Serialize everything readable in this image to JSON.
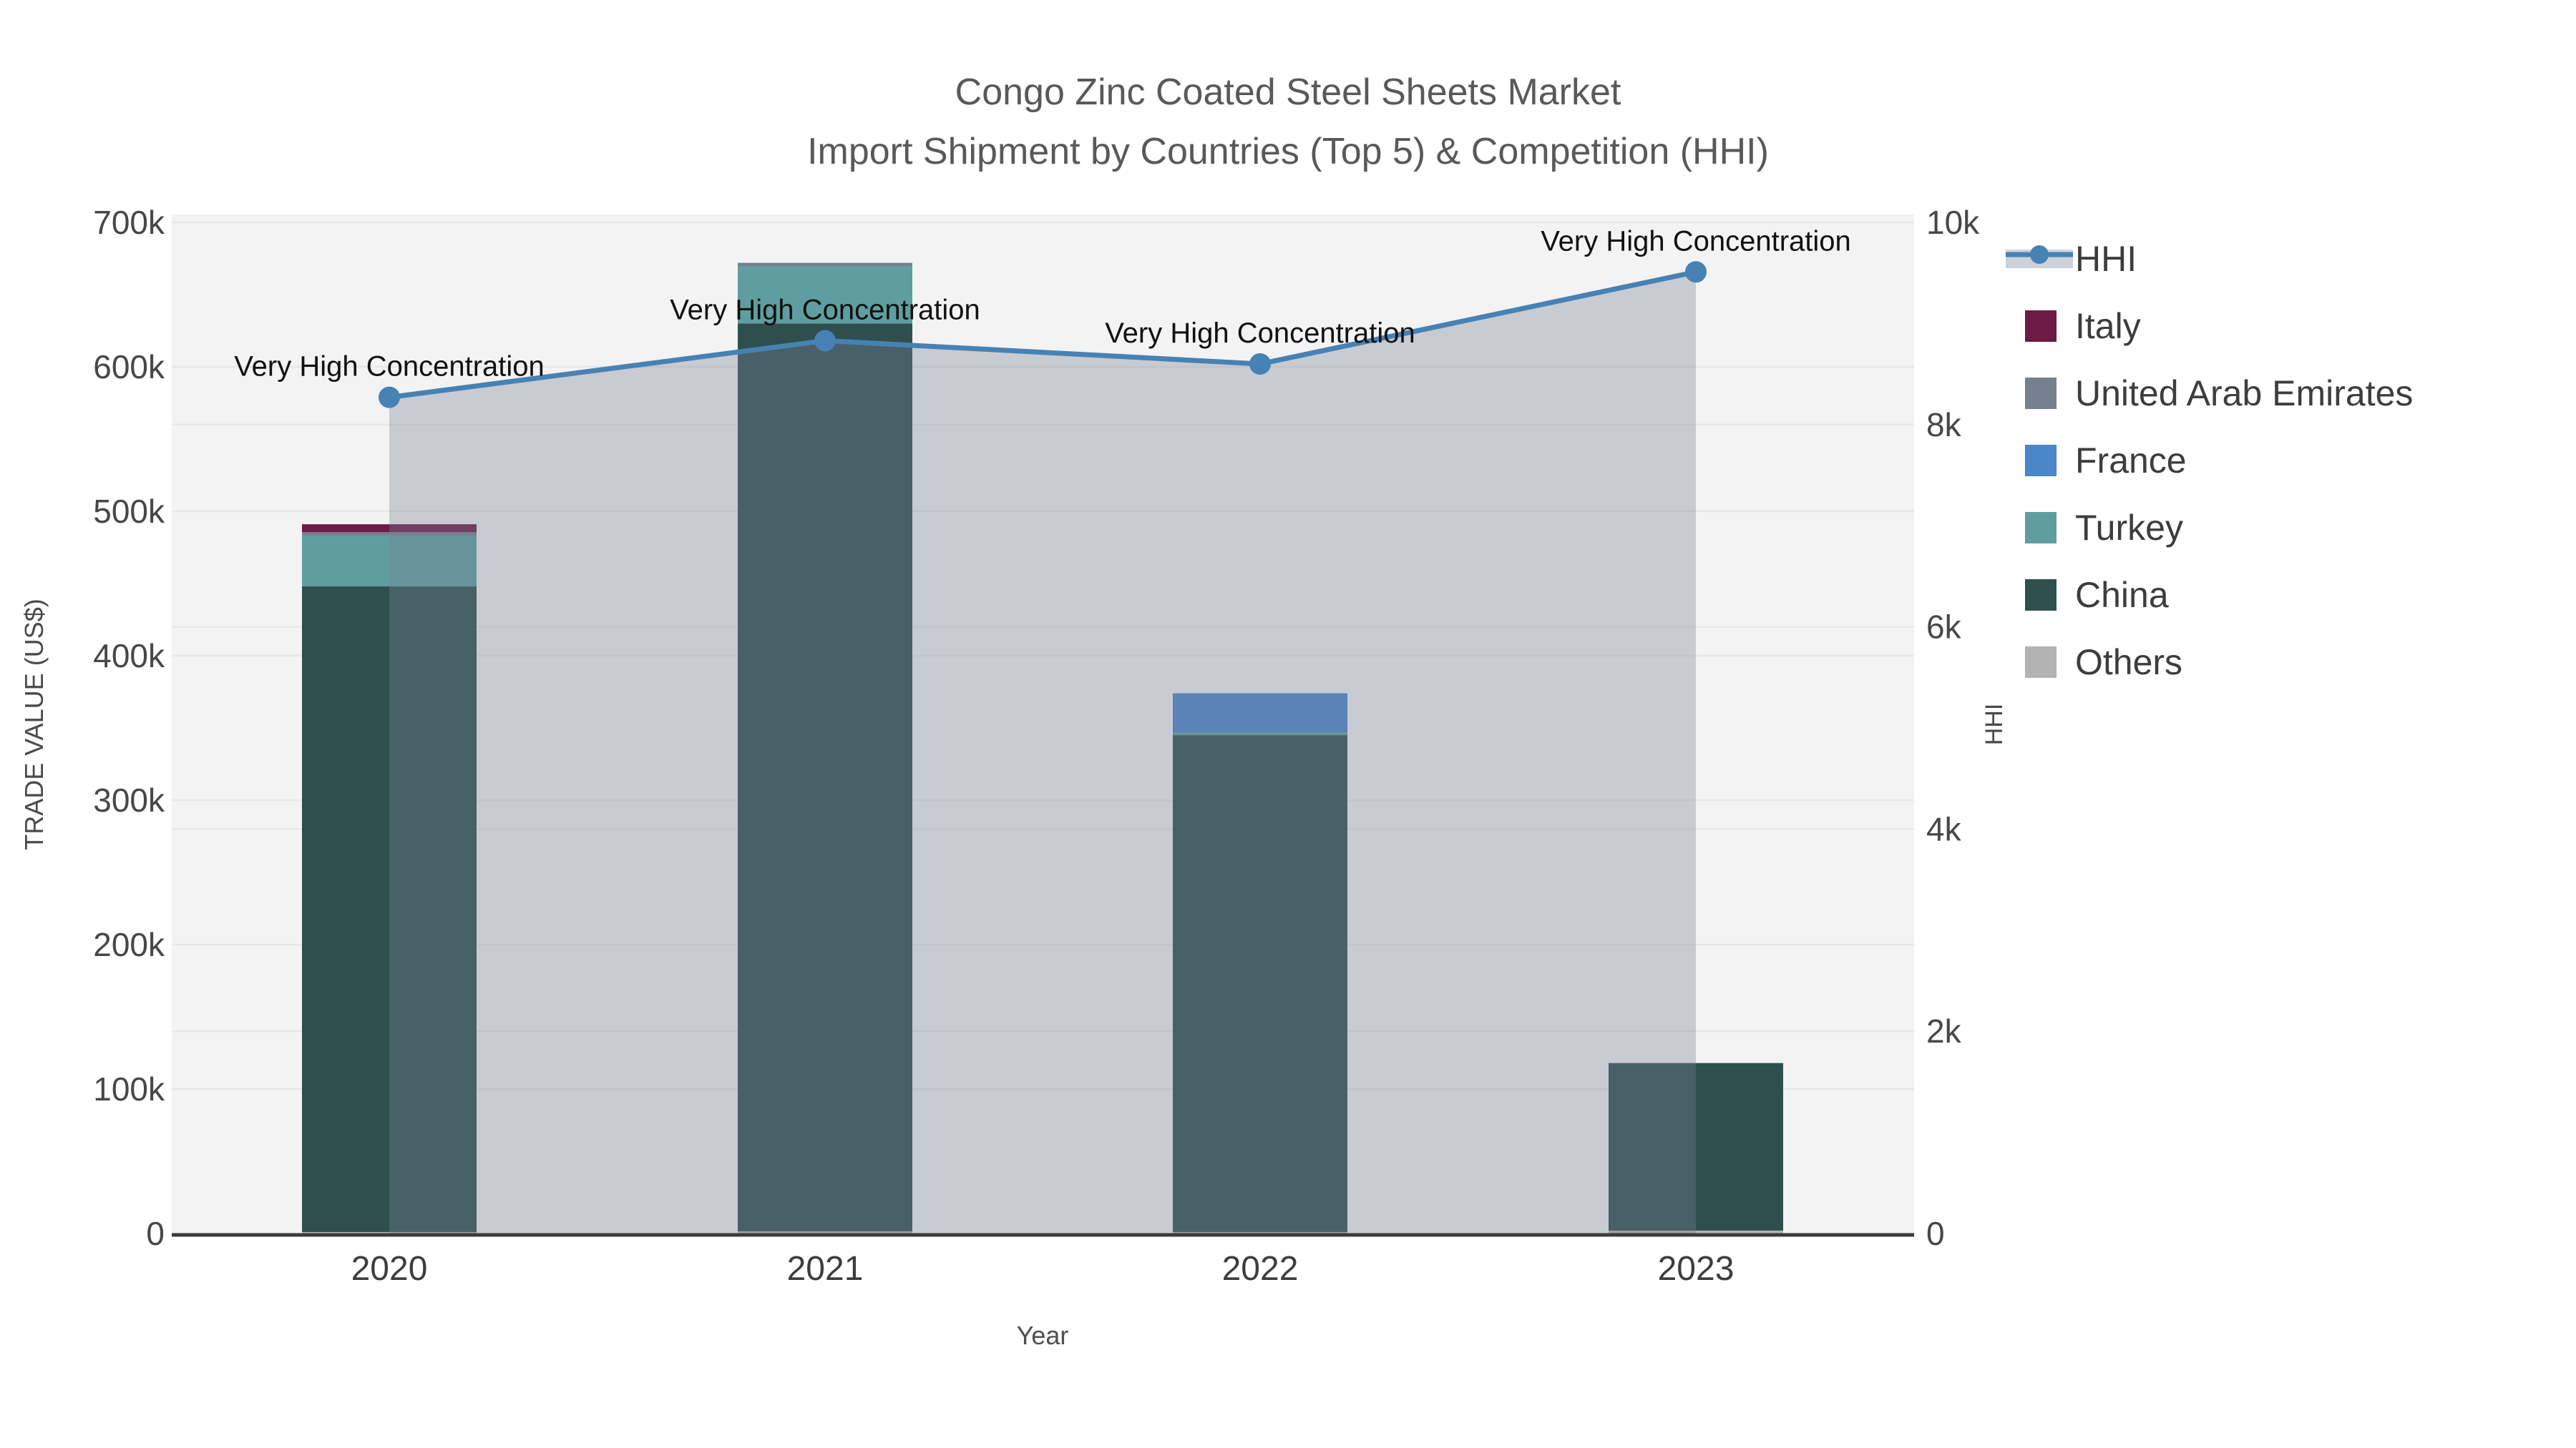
{
  "title": {
    "line1": "Congo Zinc Coated Steel Sheets Market",
    "line2": "Import Shipment by Countries (Top 5) & Competition (HHI)"
  },
  "chart_data": {
    "type": "bar",
    "bar_mode": "stacked",
    "combo": "stacked bars (left axis) + HHI line with area fill (right axis)",
    "categories": [
      "2020",
      "2021",
      "2022",
      "2023"
    ],
    "bar_series": [
      {
        "name": "Others",
        "color": "#B3B3B3",
        "values": [
          1000,
          1500,
          1000,
          2000
        ]
      },
      {
        "name": "China",
        "color": "#2F4F4F",
        "values": [
          447000,
          628500,
          344000,
          116000
        ]
      },
      {
        "name": "Turkey",
        "color": "#5F9EA0",
        "values": [
          35000,
          39500,
          2000,
          0
        ]
      },
      {
        "name": "France",
        "color": "#4A86C8",
        "values": [
          0,
          0,
          27000,
          0
        ]
      },
      {
        "name": "United Arab Emirates",
        "color": "#75808F",
        "values": [
          2500,
          2500,
          0,
          0
        ]
      },
      {
        "name": "Italy",
        "color": "#6B1B44",
        "values": [
          5500,
          0,
          0,
          0
        ]
      }
    ],
    "bar_totals": [
      491000,
      672000,
      374000,
      118000
    ],
    "line_series": {
      "name": "HHI",
      "color": "#4682B4",
      "area_color": "rgba(120,130,150,0.35)",
      "legend_band_color": "#CDD2DA",
      "values": [
        8270,
        8830,
        8600,
        9510
      ]
    },
    "annotations": [
      "Very High Concentration",
      "Very High Concentration",
      "Very High Concentration",
      "Very High Concentration"
    ],
    "xlabel": "Year",
    "ylabel_left": "TRADE VALUE (US$)",
    "ylabel_right": "HHI",
    "y_left": {
      "min": 0,
      "max": 700000,
      "tick_step": 100000,
      "ticks": [
        "0",
        "100k",
        "200k",
        "300k",
        "400k",
        "500k",
        "600k",
        "700k"
      ]
    },
    "y_right": {
      "min": 0,
      "max": 10000,
      "tick_step": 2000,
      "ticks": [
        "0",
        "2k",
        "4k",
        "6k",
        "8k",
        "10k"
      ]
    },
    "legend_order": [
      "HHI",
      "Italy",
      "United Arab Emirates",
      "France",
      "Turkey",
      "China",
      "Others"
    ],
    "legend_position": "right",
    "grid": true,
    "plot_bg": "#F3F3F3",
    "grid_color": "#E8E8E8",
    "axis_line_color": "#3C3C3C",
    "title_color": "#595959",
    "tick_color": "#474747",
    "year_label_color": "#3D3D3D",
    "axis_title_color": "#4A4A4A",
    "annotation_color": "#111111",
    "legend_text_color": "#3D3D3D"
  }
}
